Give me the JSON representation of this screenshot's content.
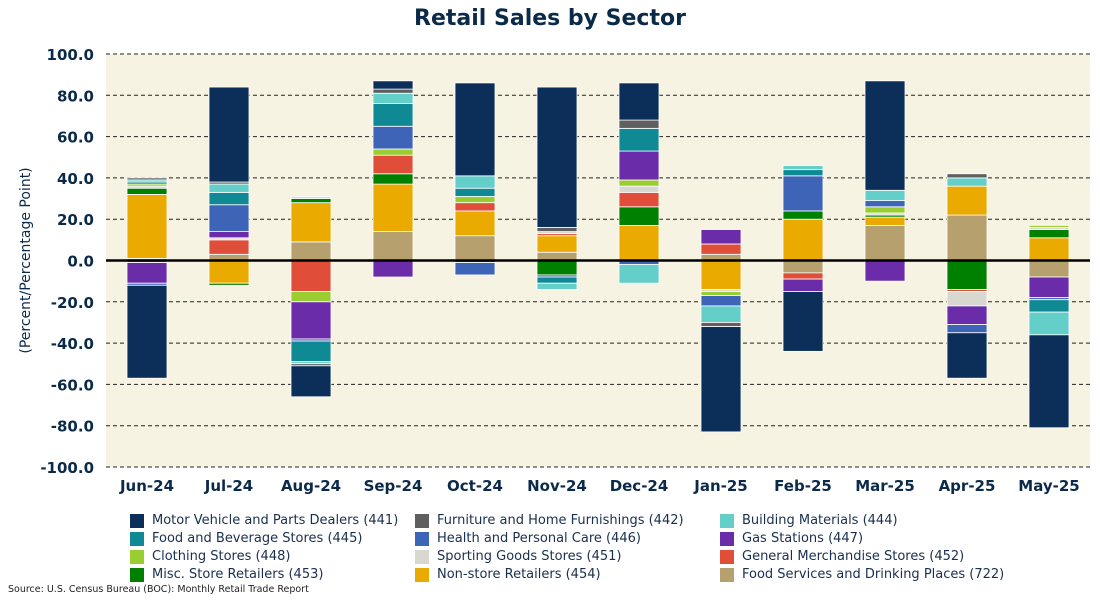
{
  "chart_data": {
    "type": "bar",
    "stacked": true,
    "title": "Retail Sales by Sector",
    "ylabel": "(Percent/Percentage Point)",
    "xlabel": "",
    "ylim": [
      -100,
      100
    ],
    "yticks": [
      100,
      80,
      60,
      40,
      20,
      0,
      -20,
      -40,
      -60,
      -80,
      -100
    ],
    "ytick_labels": [
      "100.0",
      "80.0",
      "60.0",
      "40.0",
      "20.0",
      "0.0",
      "-20.0",
      "-40.0",
      "-60.0",
      "-80.0",
      "-100.0"
    ],
    "grid": "horizontal dashed",
    "legend_position": "bottom",
    "categories": [
      "Jun-24",
      "Jul-24",
      "Aug-24",
      "Sep-24",
      "Oct-24",
      "Nov-24",
      "Dec-24",
      "Jan-25",
      "Feb-25",
      "Mar-25",
      "Apr-25",
      "May-25"
    ],
    "series": [
      {
        "name": "Food Services and Drinking Places (722)",
        "color": "#b5a06e",
        "values": [
          1,
          3,
          9,
          14,
          12,
          4,
          0,
          3,
          -6,
          17,
          22,
          -8
        ]
      },
      {
        "name": "Non-store Retailers (454)",
        "color": "#eaaa00",
        "values": [
          31,
          -11,
          19,
          23,
          12,
          8,
          17,
          -14,
          20,
          4,
          14,
          11
        ]
      },
      {
        "name": "Misc. Store Retailers (453)",
        "color": "#008000",
        "values": [
          3,
          -1,
          2,
          5,
          -1,
          -7,
          9,
          0,
          4,
          1,
          -14,
          4
        ]
      },
      {
        "name": "General Merchandise Stores (452)",
        "color": "#e04e39",
        "values": [
          -1,
          7,
          -15,
          9,
          4,
          1,
          7,
          5,
          -3,
          0,
          -1,
          0
        ]
      },
      {
        "name": "Sporting Goods Stores (451)",
        "color": "#d8d8d0",
        "values": [
          1,
          1,
          1,
          0,
          0,
          1,
          3,
          -1,
          0,
          1,
          -7,
          1
        ]
      },
      {
        "name": "Clothing Stores (448)",
        "color": "#9acd32",
        "values": [
          1,
          0,
          -5,
          3,
          3,
          0,
          3,
          -2,
          0,
          3,
          0,
          1
        ]
      },
      {
        "name": "Gas Stations (447)",
        "color": "#6a2ca8",
        "values": [
          -10,
          3,
          -18,
          -8,
          0,
          0,
          14,
          7,
          -6,
          -10,
          -9,
          -10
        ]
      },
      {
        "name": "Health and Personal Care (446)",
        "color": "#3e64b8",
        "values": [
          -1,
          13,
          -1,
          11,
          -6,
          -1,
          -2,
          -5,
          17,
          3,
          -4,
          -1
        ]
      },
      {
        "name": "Food and Beverage Stores (445)",
        "color": "#0f8a94",
        "values": [
          1,
          6,
          -10,
          11,
          4,
          -3,
          11,
          0,
          3,
          0,
          0,
          -6
        ]
      },
      {
        "name": "Building Materials (444)",
        "color": "#63cfc8",
        "values": [
          1,
          4,
          -1,
          5,
          6,
          -3,
          -9,
          -8,
          2,
          5,
          4,
          -11
        ]
      },
      {
        "name": "Furniture and Home Furnishings (442)",
        "color": "#5f5f5f",
        "values": [
          1,
          1,
          -1,
          2,
          0,
          2,
          4,
          -2,
          0,
          0,
          2,
          0
        ]
      },
      {
        "name": "Motor Vehicle and Parts Dealers (441)",
        "color": "#0b2f58",
        "values": [
          -45,
          46,
          -15,
          4,
          45,
          68,
          18,
          -51,
          -29,
          53,
          -22,
          -45
        ]
      }
    ],
    "legend": [
      {
        "name": "Motor Vehicle and Parts Dealers (441)",
        "color": "#0b2f58"
      },
      {
        "name": "Furniture and Home Furnishings (442)",
        "color": "#5f5f5f"
      },
      {
        "name": "Building Materials (444)",
        "color": "#63cfc8"
      },
      {
        "name": "Food and Beverage Stores (445)",
        "color": "#0f8a94"
      },
      {
        "name": "Health and Personal Care (446)",
        "color": "#3e64b8"
      },
      {
        "name": "Gas Stations (447)",
        "color": "#6a2ca8"
      },
      {
        "name": "Clothing Stores (448)",
        "color": "#9acd32"
      },
      {
        "name": "Sporting Goods Stores (451)",
        "color": "#d8d8d0"
      },
      {
        "name": "General Merchandise Stores (452)",
        "color": "#e04e39"
      },
      {
        "name": "Misc. Store Retailers (453)",
        "color": "#008000"
      },
      {
        "name": "Non-store Retailers (454)",
        "color": "#eaaa00"
      },
      {
        "name": "Food Services and Drinking Places (722)",
        "color": "#b5a06e"
      }
    ],
    "plot_background": "#f7f3e3",
    "source": "Source: U.S. Census Bureau (BOC): Monthly Retail Trade Report"
  }
}
